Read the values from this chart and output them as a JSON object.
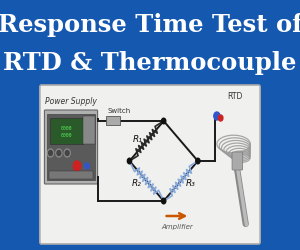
{
  "title_line1": "Response Time Test of",
  "title_line2": "RTD & Thermocouple",
  "bg_color": "#1558b0",
  "title_color": "#ffffff",
  "title_fontsize": 17.5,
  "panel_facecolor": "#f0f0ee",
  "panel_edge": "#cccccc",
  "circuit_lw": 1.4,
  "switch_label": "Switch",
  "r1_label": "R₁",
  "r2_label": "R₂",
  "r3_label": "R₃",
  "rtd_label": "RTD",
  "amplifier_label": "Amplifier",
  "power_supply_label": "Power Supply",
  "resistor_dark": "#2a2a2a",
  "resistor_blue": "#88aadd",
  "wire_color": "#1a1a1a",
  "ps_body": "#b8b8b8",
  "ps_screen": "#3a6a3a",
  "amp_arrow_color": "#cc5500"
}
